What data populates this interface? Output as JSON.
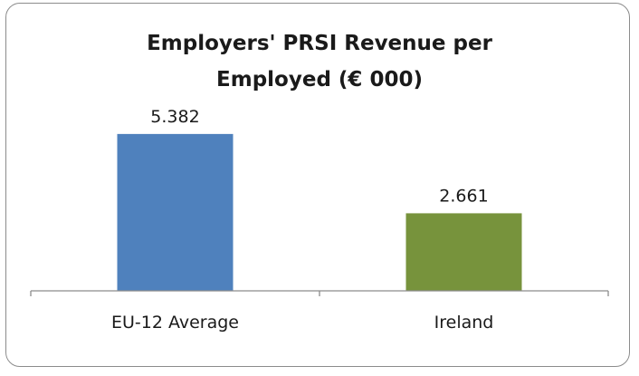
{
  "chart_data": {
    "type": "bar",
    "title_lines": [
      "Employers' PRSI Revenue per",
      "Employed (€ 000)"
    ],
    "categories": [
      "EU-12 Average",
      "Ireland"
    ],
    "values": [
      5.382,
      2.661
    ],
    "data_labels": [
      "5.382",
      "2.661"
    ],
    "bar_colors": [
      "#4f81bd",
      "#77933c"
    ],
    "ylim": [
      0,
      6
    ],
    "grid": false,
    "legend": "none"
  }
}
